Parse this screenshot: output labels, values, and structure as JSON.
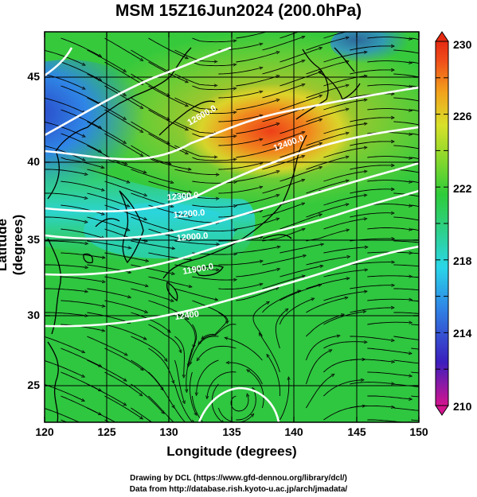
{
  "title": "MSM 15Z16Jun2024 (200.0hPa)",
  "x_axis": {
    "label": "Longitude (degrees)",
    "ticks": [
      "120",
      "125",
      "130",
      "135",
      "140",
      "145",
      "150"
    ]
  },
  "y_axis": {
    "label": "Latitude  (degrees)",
    "ticks": [
      "25",
      "30",
      "35",
      "40",
      "45"
    ]
  },
  "colorbar": {
    "ticks": [
      "230",
      "226",
      "222",
      "218",
      "214",
      "210"
    ],
    "range": [
      210,
      230
    ],
    "colors": [
      "#d4148f",
      "#3b1fbd",
      "#2f86e6",
      "#2ad6e8",
      "#2ed08a",
      "#2ecc3a",
      "#8bd82c",
      "#d8e02a",
      "#f2a21c",
      "#ef4b1a",
      "#e52a12"
    ]
  },
  "contour_labels": [
    "12600.0",
    "12400.0",
    "12300.0",
    "12200.0",
    "12000.0",
    "11900.0",
    "12400"
  ],
  "credits": [
    "Drawing by DCL (https://www.gfd-dennou.org/library/dcl/)",
    "Data from http://database.rish.kyoto-u.ac.jp/arch/jmadata/"
  ]
}
